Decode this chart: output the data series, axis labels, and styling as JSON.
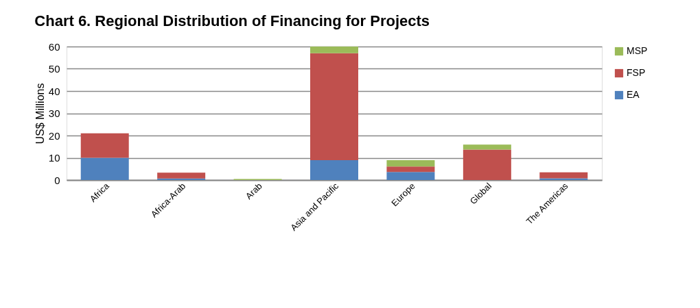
{
  "chart_data": {
    "type": "bar",
    "title": "Chart 6. Regional Distribution of Financing for Projects",
    "ylabel": "US$ Millions",
    "categories": [
      "Africa",
      "Africa-Arab",
      "Arab",
      "Asia and Pacific",
      "Europe",
      "Global",
      "The Americas"
    ],
    "stacked": true,
    "series": [
      {
        "name": "EA",
        "color": "#4f81bd",
        "values": [
          10,
          0.7,
          0,
          8.9,
          3.6,
          0,
          0.8
        ]
      },
      {
        "name": "FSP",
        "color": "#c0504d",
        "values": [
          11,
          2.6,
          0,
          48.1,
          2.5,
          13.7,
          2.7
        ]
      },
      {
        "name": "MSP",
        "color": "#9bbb59",
        "values": [
          0,
          0,
          0.5,
          3.0,
          2.8,
          2.2,
          0
        ]
      }
    ],
    "ylim": [
      0,
      60
    ],
    "yticks": [
      0,
      10,
      20,
      30,
      40,
      50,
      60
    ],
    "grid": "y",
    "legend": "right"
  }
}
